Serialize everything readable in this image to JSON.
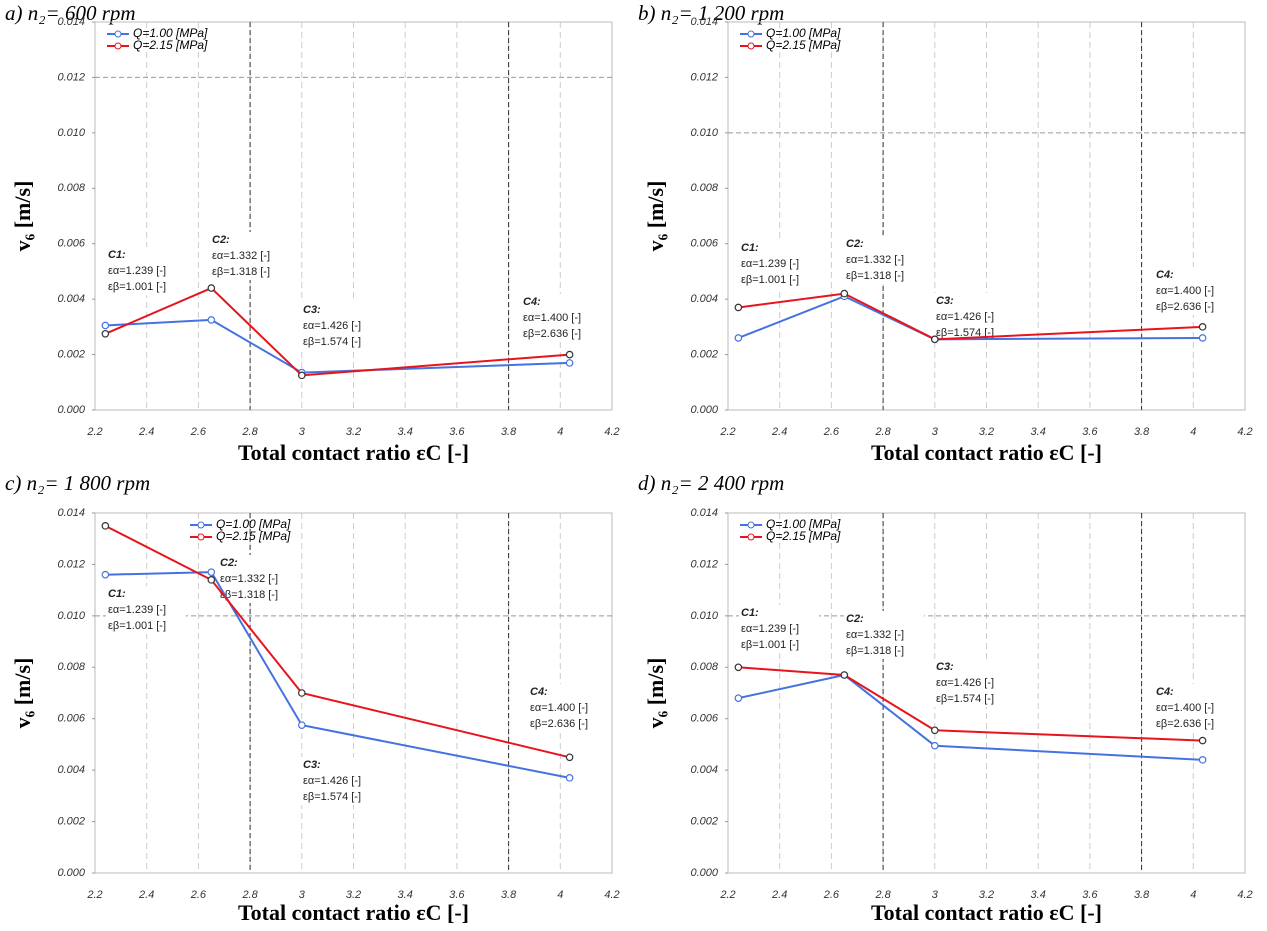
{
  "chart_data": [
    {
      "type": "line",
      "title": "a) n₂= 600 rpm",
      "x_label": "Total contact ratio εC [-]",
      "y_label": "v₆ [m/s]",
      "x": [
        2.24,
        2.65,
        3.0,
        4.036
      ],
      "series": [
        {
          "name": "Q=1.00 [MPa]",
          "color": "#4472e0",
          "values": [
            0.00305,
            0.00325,
            0.00135,
            0.0017
          ]
        },
        {
          "name": "Q=2.15 [MPa]",
          "color": "#e8141c",
          "values": [
            0.00275,
            0.0044,
            0.00125,
            0.002
          ]
        }
      ],
      "xlim": [
        2.2,
        4.2
      ],
      "xticks": [
        2.2,
        2.4,
        2.6,
        2.8,
        3,
        3.2,
        3.4,
        3.6,
        3.8,
        4,
        4.2
      ],
      "ylim": [
        0,
        0.014
      ],
      "yticks": [
        {
          "value": 0,
          "label": "0.000"
        },
        {
          "value": 0.002,
          "label": "0.002"
        },
        {
          "value": 0.004,
          "label": "0.004"
        },
        {
          "value": 0.006,
          "label": "0.006"
        },
        {
          "value": 0.008,
          "label": "0.008"
        },
        {
          "value": 0.01,
          "label": "0.010"
        },
        {
          "value": 0.012,
          "label": "0.012"
        },
        {
          "value": 0.014,
          "label": "0.014"
        }
      ],
      "hlines": [
        0.012
      ],
      "vlines": [
        2.8,
        3.8
      ],
      "grid": true,
      "legend": "upper left",
      "annotations": [
        {
          "label": "C1:",
          "lines": [
            "εα=1.239 [-]",
            "εβ=1.001 [-]"
          ]
        },
        {
          "label": "C2:",
          "lines": [
            "εα=1.332 [-]",
            "εβ=1.318 [-]"
          ]
        },
        {
          "label": "C3:",
          "lines": [
            "εα=1.426 [-]",
            "εβ=1.574 [-]"
          ]
        },
        {
          "label": "C4:",
          "lines": [
            "εα=1.400 [-]",
            "εβ=2.636 [-]"
          ]
        }
      ]
    },
    {
      "type": "line",
      "title": "b) n₂= 1 200 rpm",
      "x_label": "Total contact ratio εC [-]",
      "y_label": "v₆ [m/s]",
      "x": [
        2.24,
        2.65,
        3.0,
        4.036
      ],
      "series": [
        {
          "name": "Q=1.00 [MPa]",
          "color": "#4472e0",
          "values": [
            0.0026,
            0.0041,
            0.00255,
            0.0026
          ]
        },
        {
          "name": "Q=2.15 [MPa]",
          "color": "#e8141c",
          "values": [
            0.0037,
            0.0042,
            0.00255,
            0.003
          ]
        }
      ],
      "xlim": [
        2.2,
        4.2
      ],
      "xticks": [
        2.2,
        2.4,
        2.6,
        2.8,
        3,
        3.2,
        3.4,
        3.6,
        3.8,
        4,
        4.2
      ],
      "ylim": [
        0,
        0.014
      ],
      "yticks": [
        {
          "value": 0,
          "label": "0.000"
        },
        {
          "value": 0.002,
          "label": "0.002"
        },
        {
          "value": 0.004,
          "label": "0.004"
        },
        {
          "value": 0.006,
          "label": "0.006"
        },
        {
          "value": 0.008,
          "label": "0.008"
        },
        {
          "value": 0.01,
          "label": "0.010"
        },
        {
          "value": 0.012,
          "label": "0.012"
        },
        {
          "value": 0.014,
          "label": "0.014"
        }
      ],
      "hlines": [
        0.01
      ],
      "vlines": [
        2.8,
        3.8
      ],
      "grid": true,
      "legend": "upper left",
      "annotations": [
        {
          "label": "C1:",
          "lines": [
            "εα=1.239 [-]",
            "εβ=1.001 [-]"
          ]
        },
        {
          "label": "C2:",
          "lines": [
            "εα=1.332 [-]",
            "εβ=1.318 [-]"
          ]
        },
        {
          "label": "C3:",
          "lines": [
            "εα=1.426 [-]",
            "εβ=1.574 [-]"
          ]
        },
        {
          "label": "C4:",
          "lines": [
            "εα=1.400 [-]",
            "εβ=2.636 [-]"
          ]
        }
      ]
    },
    {
      "type": "line",
      "title": "c) n₂= 1 800 rpm",
      "x_label": "Total contact ratio εC [-]",
      "y_label": "v₆ [m/s]",
      "x": [
        2.24,
        2.65,
        3.0,
        4.036
      ],
      "series": [
        {
          "name": "Q=1.00 [MPa]",
          "color": "#4472e0",
          "values": [
            0.0116,
            0.0117,
            0.00575,
            0.0037
          ]
        },
        {
          "name": "Q=2.15 [MPa]",
          "color": "#e8141c",
          "values": [
            0.0135,
            0.0114,
            0.007,
            0.0045
          ]
        }
      ],
      "xlim": [
        2.2,
        4.2
      ],
      "xticks": [
        2.2,
        2.4,
        2.6,
        2.8,
        3,
        3.2,
        3.4,
        3.6,
        3.8,
        4,
        4.2
      ],
      "ylim": [
        0,
        0.014
      ],
      "yticks": [
        {
          "value": 0,
          "label": "0.000"
        },
        {
          "value": 0.002,
          "label": "0.002"
        },
        {
          "value": 0.004,
          "label": "0.004"
        },
        {
          "value": 0.006,
          "label": "0.006"
        },
        {
          "value": 0.008,
          "label": "0.008"
        },
        {
          "value": 0.01,
          "label": "0.010"
        },
        {
          "value": 0.012,
          "label": "0.012"
        },
        {
          "value": 0.014,
          "label": "0.014"
        }
      ],
      "hlines": [
        0.01
      ],
      "vlines": [
        2.8,
        3.8
      ],
      "grid": true,
      "legend": "upper center",
      "annotations": [
        {
          "label": "C1:",
          "lines": [
            "εα=1.239 [-]",
            "εβ=1.001 [-]"
          ]
        },
        {
          "label": "C2:",
          "lines": [
            "εα=1.332 [-]",
            "εβ=1.318 [-]"
          ]
        },
        {
          "label": "C3:",
          "lines": [
            "εα=1.426 [-]",
            "εβ=1.574 [-]"
          ]
        },
        {
          "label": "C4:",
          "lines": [
            "εα=1.400 [-]",
            "εβ=2.636 [-]"
          ]
        }
      ]
    },
    {
      "type": "line",
      "title": "d) n₂= 2 400 rpm",
      "x_label": "Total contact ratio εC [-]",
      "y_label": "v₆ [m/s]",
      "x": [
        2.24,
        2.65,
        3.0,
        4.036
      ],
      "series": [
        {
          "name": "Q=1.00 [MPa]",
          "color": "#4472e0",
          "values": [
            0.0068,
            0.0077,
            0.00495,
            0.0044
          ]
        },
        {
          "name": "Q=2.15 [MPa]",
          "color": "#e8141c",
          "values": [
            0.008,
            0.0077,
            0.00555,
            0.00515
          ]
        }
      ],
      "xlim": [
        2.2,
        4.2
      ],
      "xticks": [
        2.2,
        2.4,
        2.6,
        2.8,
        3,
        3.2,
        3.4,
        3.6,
        3.8,
        4,
        4.2
      ],
      "ylim": [
        0,
        0.014
      ],
      "yticks": [
        {
          "value": 0,
          "label": "0.000"
        },
        {
          "value": 0.002,
          "label": "0.002"
        },
        {
          "value": 0.004,
          "label": "0.004"
        },
        {
          "value": 0.006,
          "label": "0.006"
        },
        {
          "value": 0.008,
          "label": "0.008"
        },
        {
          "value": 0.01,
          "label": "0.010"
        },
        {
          "value": 0.012,
          "label": "0.012"
        },
        {
          "value": 0.014,
          "label": "0.014"
        }
      ],
      "hlines": [
        0.01
      ],
      "vlines": [
        2.8,
        3.8
      ],
      "grid": true,
      "legend": "upper left",
      "annotations": [
        {
          "label": "C1:",
          "lines": [
            "εα=1.239 [-]",
            "εβ=1.001 [-]"
          ]
        },
        {
          "label": "C2:",
          "lines": [
            "εα=1.332 [-]",
            "εβ=1.318 [-]"
          ]
        },
        {
          "label": "C3:",
          "lines": [
            "εα=1.426 [-]",
            "εβ=1.574 [-]"
          ]
        },
        {
          "label": "C4:",
          "lines": [
            "εα=1.400 [-]",
            "εβ=2.636 [-]"
          ]
        }
      ]
    }
  ]
}
